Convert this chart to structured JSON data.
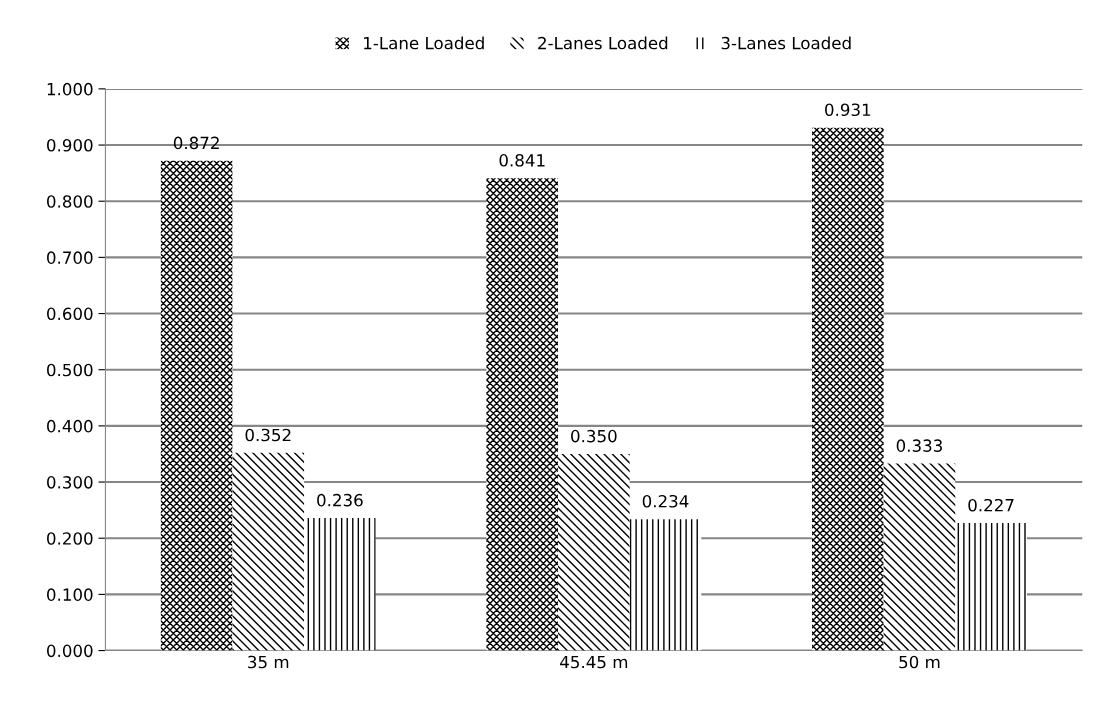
{
  "chart_data": {
    "type": "bar",
    "categories": [
      "35 m",
      "45.45 m",
      "50 m"
    ],
    "series": [
      {
        "name": "1-Lane Loaded",
        "color": "#000000",
        "values": [
          0.872,
          0.841,
          0.931
        ],
        "value_labels": [
          "0.872",
          "0.841",
          "0.931"
        ]
      },
      {
        "name": "2-Lanes Loaded",
        "color": "#000000",
        "values": [
          0.352,
          0.35,
          0.333
        ],
        "value_labels": [
          "0.352",
          "0.350",
          "0.333"
        ]
      },
      {
        "name": "3-Lanes Loaded",
        "color": "#000000",
        "values": [
          0.236,
          0.234,
          0.227
        ],
        "value_labels": [
          "0.236",
          "0.234",
          "0.227"
        ]
      }
    ],
    "ylim": [
      0,
      1
    ],
    "yticks": [
      {
        "value": 0,
        "label": "0.000"
      },
      {
        "value": 0.1,
        "label": "0.100"
      },
      {
        "value": 0.2,
        "label": "0.200"
      },
      {
        "value": 0.3,
        "label": "0.300"
      },
      {
        "value": 0.4,
        "label": "0.400"
      },
      {
        "value": 0.5,
        "label": "0.500"
      },
      {
        "value": 0.6,
        "label": "0.600"
      },
      {
        "value": 0.7,
        "label": "0.700"
      },
      {
        "value": 0.8,
        "label": "0.800"
      },
      {
        "value": 0.9,
        "label": "0.900"
      },
      {
        "value": 1,
        "label": "1.000"
      }
    ],
    "grid": "y",
    "legend": "top"
  }
}
